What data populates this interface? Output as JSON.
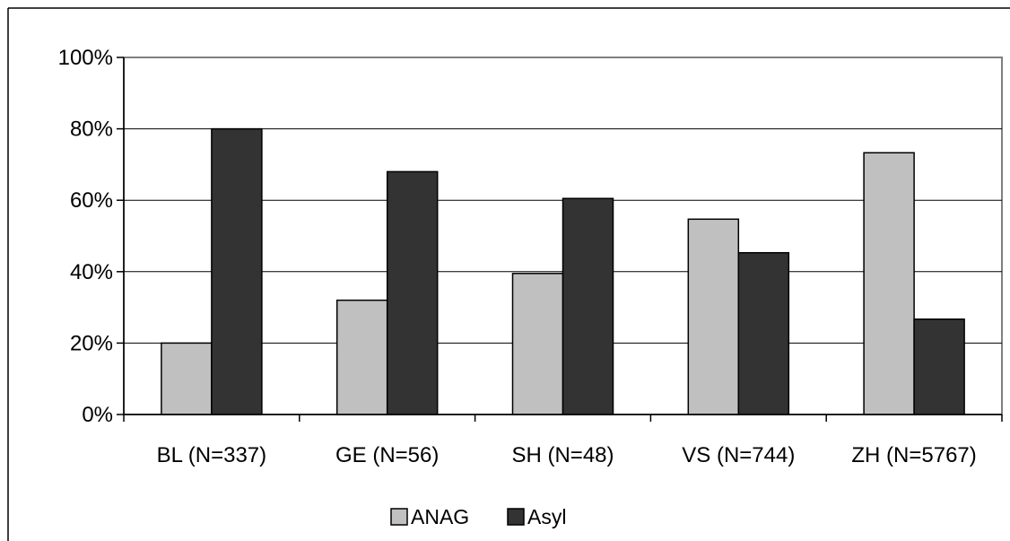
{
  "chart_data": {
    "type": "bar",
    "title": "",
    "xlabel": "",
    "ylabel": "",
    "categories": [
      "BL (N=337)",
      "GE (N=56)",
      "SH (N=48)",
      "VS (N=744)",
      "ZH (N=5767)"
    ],
    "series": [
      {
        "name": "ANAG",
        "color": "#c0c0c0",
        "values": [
          20,
          32,
          39.5,
          54.7,
          73.3
        ]
      },
      {
        "name": "Asyl",
        "color": "#333333",
        "values": [
          80,
          68,
          60.5,
          45.3,
          26.7
        ]
      }
    ],
    "ylim": [
      0,
      100
    ],
    "yticks": [
      0,
      20,
      40,
      60,
      80,
      100
    ],
    "ytick_labels": [
      "0%",
      "20%",
      "40%",
      "60%",
      "80%",
      "100%"
    ],
    "grid": true,
    "legend_position": "bottom"
  }
}
